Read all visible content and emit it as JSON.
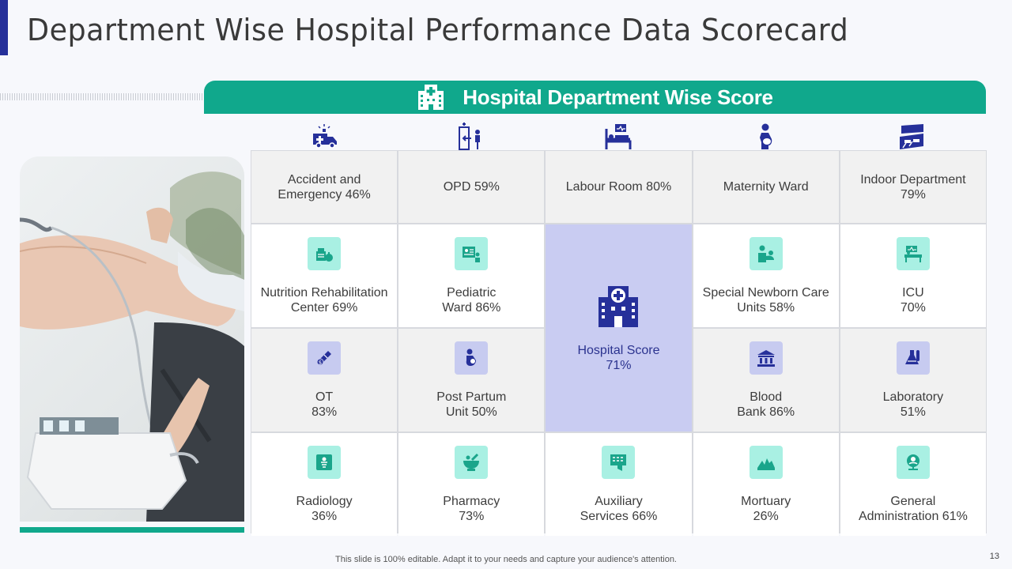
{
  "title": "Department Wise Hospital Performance Data Scorecard",
  "header": {
    "title": "Hospital Department Wise Score",
    "icon": "hospital-icon"
  },
  "colors": {
    "accent": "#10a88c",
    "brand": "#26309a",
    "highlight": "#c9ccf2",
    "icon_teal": "#a9f0e3",
    "icon_lavender": "#c7cbf0"
  },
  "column_icons": [
    "ambulance-icon",
    "opd-icon",
    "labour-room-icon",
    "maternity-icon",
    "indoor-department-icon"
  ],
  "top_row": [
    {
      "label": "Accident and\nEmergency 46%"
    },
    {
      "label": "OPD 59%"
    },
    {
      "label": "Labour Room 80%"
    },
    {
      "label": "Maternity  Ward"
    },
    {
      "label": "Indoor  Department\n79%"
    }
  ],
  "row2": [
    {
      "label": "Nutrition  Rehabilitation\nCenter 69%",
      "icon": "nutrition-icon"
    },
    {
      "label": "Pediatric\nWard 86%",
      "icon": "pediatric-icon"
    },
    {
      "label": "Special Newborn Care\nUnits 58%",
      "icon": "newborn-care-icon"
    },
    {
      "label": "ICU\n70%",
      "icon": "icu-icon"
    }
  ],
  "row3": [
    {
      "label": "OT\n83%",
      "icon": "ot-icon"
    },
    {
      "label": "Post Partum\nUnit 50%",
      "icon": "post-partum-icon"
    },
    {
      "label": "Blood\nBank 86%",
      "icon": "blood-bank-icon"
    },
    {
      "label": "Laboratory\n51%",
      "icon": "laboratory-icon"
    }
  ],
  "row4": [
    {
      "label": "Radiology\n36%",
      "icon": "radiology-icon"
    },
    {
      "label": "Pharmacy\n73%",
      "icon": "pharmacy-icon"
    },
    {
      "label": "Auxiliary\nServices 66%",
      "icon": "auxiliary-services-icon"
    },
    {
      "label": "Mortuary\n26%",
      "icon": "mortuary-icon"
    },
    {
      "label": "General\nAdministration 61%",
      "icon": "general-administration-icon"
    }
  ],
  "hospital_score": {
    "label": "Hospital Score\n71%",
    "icon": "hospital-building-icon"
  },
  "footer": "This slide is 100% editable. Adapt it to your needs and capture your audience's attention.",
  "page_number": "13"
}
